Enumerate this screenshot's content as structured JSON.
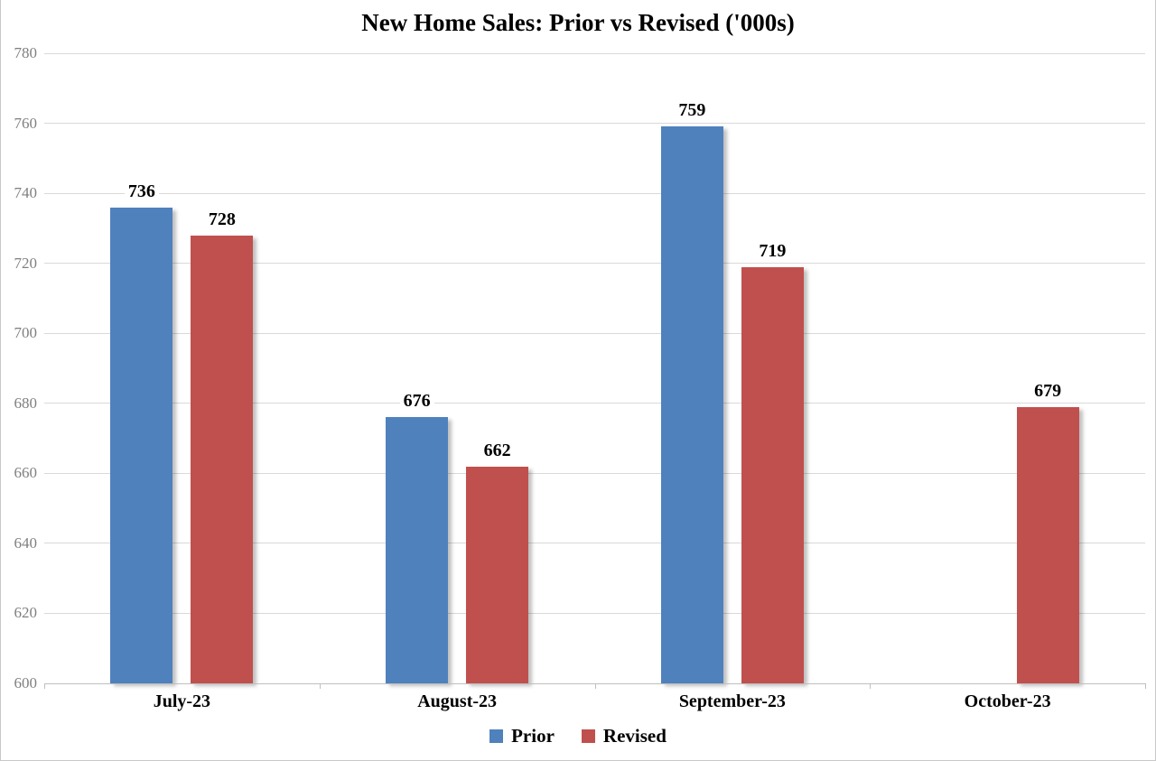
{
  "chart_data": {
    "type": "bar",
    "title": "New Home Sales: Prior vs Revised ('000s)",
    "categories": [
      "July-23",
      "August-23",
      "September-23",
      "October-23"
    ],
    "series": [
      {
        "name": "Prior",
        "color": "#4F81BD",
        "values": [
          736,
          676,
          759,
          null
        ]
      },
      {
        "name": "Revised",
        "color": "#C0504D",
        "values": [
          728,
          662,
          719,
          679
        ]
      }
    ],
    "data_labels": [
      {
        "series": "Prior",
        "values": [
          "736",
          "676",
          "759",
          null
        ]
      },
      {
        "series": "Revised",
        "values": [
          "728",
          "662",
          "719",
          "679"
        ]
      }
    ],
    "xlabel": "",
    "ylabel": "",
    "ylim": [
      600,
      780
    ],
    "yticks": [
      600,
      620,
      640,
      660,
      680,
      700,
      720,
      740,
      760,
      780
    ],
    "grid": "horizontal",
    "legend_position": "bottom",
    "colors": {
      "prior": "#4F81BD",
      "revised": "#C0504D",
      "gridline": "#D9D9D9",
      "axis": "#BFBFBF",
      "ytick_text": "#7F7F7F",
      "label_text": "#000000"
    }
  }
}
